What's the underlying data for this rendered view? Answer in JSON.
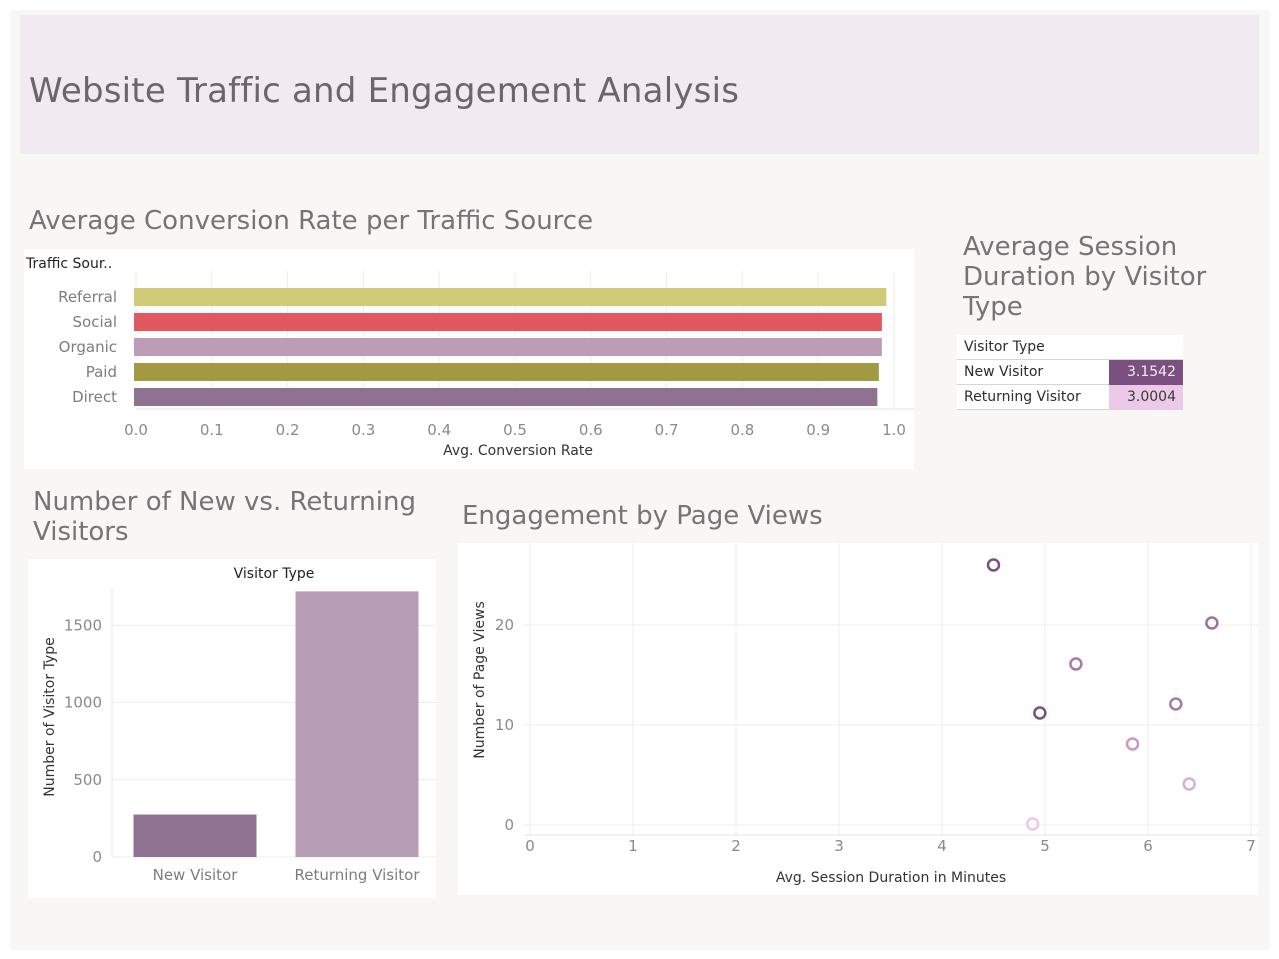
{
  "page_title": "Website Traffic and Engagement Analysis",
  "colors": {
    "title_band": "#f1eaf1",
    "referral": "#d0cb76",
    "social": "#e15860",
    "organic": "#bc9cb6",
    "paid": "#a29a40",
    "direct": "#8f7190",
    "new_visitor_bar": "#8f7190",
    "returning_visitor_bar": "#b89eb4",
    "kpi_new_bg": "#7c4f81",
    "kpi_returning_bg": "#ecc9e6"
  },
  "conversion": {
    "title": "Average Conversion Rate per Traffic Source",
    "row_header": "Traffic Sour..",
    "xlabel": "Avg. Conversion Rate"
  },
  "session": {
    "title": "Average Session Duration by Visitor Type",
    "header": "Visitor Type",
    "rows": [
      {
        "label": "New Visitor",
        "value": "3.1542"
      },
      {
        "label": "Returning Visitor",
        "value": "3.0004"
      }
    ]
  },
  "visitors": {
    "title": "Number of New vs. Returning Visitors",
    "column_header": "Visitor Type",
    "ylabel": "Number of Visitor Type"
  },
  "engagement": {
    "title": "Engagement by Page Views",
    "xlabel": "Avg. Session Duration in Minutes",
    "ylabel": "Number of Page Views"
  },
  "chart_data": [
    {
      "type": "bar",
      "orientation": "horizontal",
      "title": "Average Conversion Rate per Traffic Source",
      "categories": [
        "Referral",
        "Social",
        "Organic",
        "Paid",
        "Direct"
      ],
      "values": [
        0.99,
        0.984,
        0.984,
        0.98,
        0.978
      ],
      "colors": [
        "#d0cb76",
        "#e15860",
        "#bc9cb6",
        "#a29a40",
        "#8f7190"
      ],
      "xlabel": "Avg. Conversion Rate",
      "xlim": [
        0,
        1.0
      ],
      "xticks": [
        "0.0",
        "0.1",
        "0.2",
        "0.3",
        "0.4",
        "0.5",
        "0.6",
        "0.7",
        "0.8",
        "0.9",
        "1.0"
      ],
      "grid": true
    },
    {
      "type": "bar",
      "title": "Number of New vs. Returning Visitors",
      "categories": [
        "New Visitor",
        "Returning Visitor"
      ],
      "values": [
        275,
        1720
      ],
      "colors": [
        "#8f7190",
        "#b89eb4"
      ],
      "ylabel": "Number of Visitor Type",
      "ylim": [
        0,
        1800
      ],
      "yticks": [
        "0",
        "500",
        "1000",
        "1500"
      ],
      "grid": true
    },
    {
      "type": "scatter",
      "title": "Engagement by Page Views",
      "xlabel": "Avg. Session Duration in Minutes",
      "ylabel": "Number of Page Views",
      "xlim": [
        0,
        7
      ],
      "ylim": [
        -1,
        27
      ],
      "xticks": [
        "0",
        "1",
        "2",
        "3",
        "4",
        "5",
        "6",
        "7"
      ],
      "yticks": [
        "0",
        "10",
        "20"
      ],
      "points": [
        {
          "x": 4.5,
          "y": 26,
          "color": "#7c4f81"
        },
        {
          "x": 6.62,
          "y": 20.2,
          "color": "#a0709e"
        },
        {
          "x": 5.3,
          "y": 16.1,
          "color": "#a97aa6"
        },
        {
          "x": 6.27,
          "y": 12.1,
          "color": "#a97aa6"
        },
        {
          "x": 4.95,
          "y": 11.2,
          "color": "#7c4f81"
        },
        {
          "x": 5.85,
          "y": 8.1,
          "color": "#c89ac3"
        },
        {
          "x": 6.4,
          "y": 4.1,
          "color": "#dcaed6"
        },
        {
          "x": 4.88,
          "y": 0.1,
          "color": "#ecc9e6"
        }
      ],
      "grid": true
    }
  ]
}
